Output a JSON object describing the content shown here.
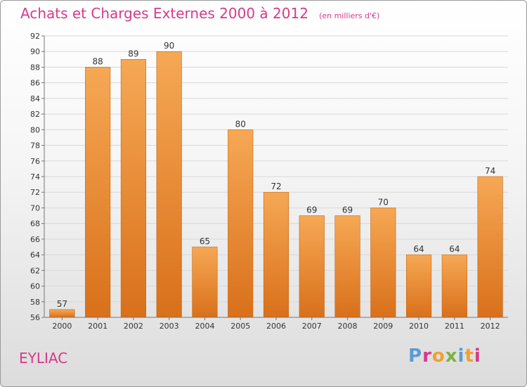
{
  "header": {
    "title": "Achats et Charges Externes 2000 à 2012",
    "unit_note": "(en milliers d'€)"
  },
  "footer": {
    "place": "EYLIAC",
    "brand": "Proxiti",
    "brand_letter_colors": [
      "#5b9bd5",
      "#d63a8a",
      "#f0a030",
      "#7cb342",
      "#5b9bd5",
      "#f0a030",
      "#d63a8a"
    ]
  },
  "colors": {
    "bar_light": "#f6a855",
    "bar_dark": "#d9701a",
    "bar_edge": "#c76410",
    "grid": "#d8d8d8",
    "axis": "#777777",
    "text": "#333333",
    "title": "#d63a8a"
  },
  "chart_data": {
    "type": "bar",
    "title": "Achats et Charges Externes 2000 à 2012",
    "subtitle": "(en milliers d'€)",
    "xlabel": "",
    "ylabel": "",
    "categories": [
      "2000",
      "2001",
      "2002",
      "2003",
      "2004",
      "2005",
      "2006",
      "2007",
      "2008",
      "2009",
      "2010",
      "2011",
      "2012"
    ],
    "values": [
      57,
      88,
      89,
      90,
      65,
      80,
      72,
      69,
      69,
      70,
      64,
      64,
      74
    ],
    "ylim": [
      56,
      92
    ],
    "yticks": [
      56,
      58,
      60,
      62,
      64,
      66,
      68,
      70,
      72,
      74,
      76,
      78,
      80,
      82,
      84,
      86,
      88,
      90,
      92
    ],
    "grid": true,
    "legend": "none"
  }
}
